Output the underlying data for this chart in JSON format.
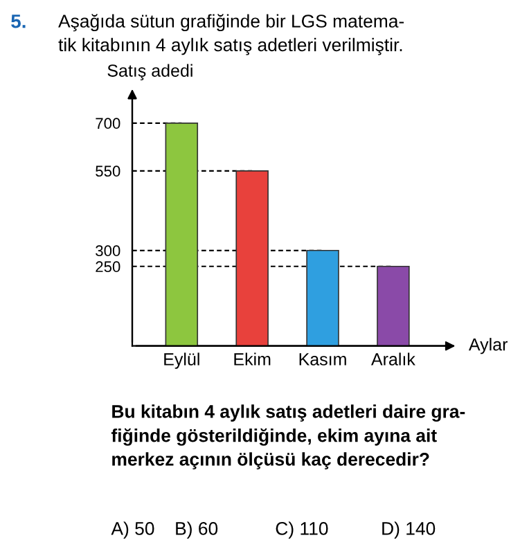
{
  "chart_data": {
    "type": "bar",
    "title": "Aşağıda sütun grafiğinde bir LGS matema-\ntik kitabının 4 aylık satış adetleri verilmiştir.",
    "ylabel": "Satış adedi",
    "xlabel": "Aylar",
    "categories": [
      "Eylül",
      "Ekim",
      "Kasım",
      "Aralık"
    ],
    "values": [
      700,
      550,
      300,
      250
    ],
    "colors": [
      "#8dc63f",
      "#e8413c",
      "#2f9fe0",
      "#8a4aa8"
    ],
    "ylim": [
      0,
      780
    ],
    "yticks": [
      250,
      300,
      550,
      700
    ],
    "ref_lines": [
      {
        "axis": "y",
        "value": 700,
        "line_style": "dashed",
        "color": "#000000"
      },
      {
        "axis": "y",
        "value": 550,
        "line_style": "dashed",
        "color": "#000000"
      },
      {
        "axis": "y",
        "value": 300,
        "line_style": "dashed",
        "color": "#000000"
      },
      {
        "axis": "y",
        "value": 250,
        "line_style": "dashed",
        "color": "#000000"
      }
    ],
    "annotations": [
      "5.",
      "Bu kitabın 4 aylık satış adetleri daire gra-\nfiğinde gösterildiğinde, ekim ayına ait\nmerkez açının ölçüsü kaç derecedir?",
      "A) 50",
      "B) 60",
      "C) 110",
      "D) 140"
    ],
    "grid": false,
    "legend": false
  }
}
